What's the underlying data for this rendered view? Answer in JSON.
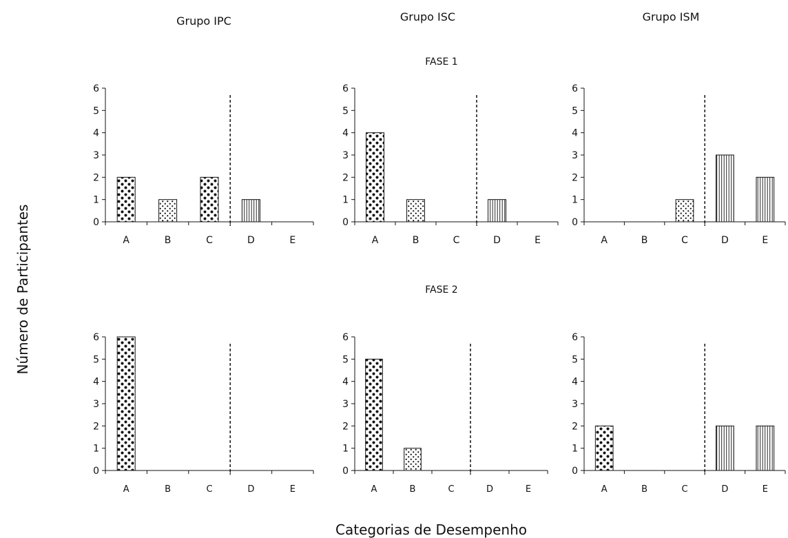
{
  "figure": {
    "group_titles": [
      "Grupo IPC",
      "Grupo ISC",
      "Grupo ISM"
    ],
    "phase_titles": [
      "FASE 1",
      "FASE 2"
    ],
    "ylabel": "Número de Participantes",
    "xlabel": "Categorias de Desempenho"
  },
  "chart_data": [
    {
      "type": "bar",
      "group": "Grupo IPC",
      "phase": "FASE 1",
      "categories": [
        "A",
        "B",
        "C",
        "D",
        "E"
      ],
      "values": [
        2,
        1,
        2,
        1,
        0
      ],
      "yticks": [
        "0",
        "1",
        "2",
        "3",
        "4",
        "5",
        "6"
      ],
      "ylim": [
        0,
        6
      ]
    },
    {
      "type": "bar",
      "group": "Grupo ISC",
      "phase": "FASE 1",
      "categories": [
        "A",
        "B",
        "C",
        "D",
        "E"
      ],
      "values": [
        4,
        1,
        0,
        1,
        0
      ],
      "yticks": [
        "0",
        "1",
        "2",
        "3",
        "4",
        "5",
        "6"
      ],
      "ylim": [
        0,
        6
      ]
    },
    {
      "type": "bar",
      "group": "Grupo ISM",
      "phase": "FASE 1",
      "categories": [
        "A",
        "B",
        "C",
        "D",
        "E"
      ],
      "values": [
        0,
        0,
        1,
        3,
        2
      ],
      "yticks": [
        "0",
        "1",
        "2",
        "3",
        "4",
        "5",
        "6"
      ],
      "ylim": [
        0,
        6
      ]
    },
    {
      "type": "bar",
      "group": "Grupo IPC",
      "phase": "FASE 2",
      "categories": [
        "A",
        "B",
        "C",
        "D",
        "E"
      ],
      "values": [
        6,
        0,
        0,
        0,
        0
      ],
      "yticks": [
        "0",
        "1",
        "2",
        "3",
        "4",
        "5",
        "6"
      ],
      "ylim": [
        0,
        6
      ]
    },
    {
      "type": "bar",
      "group": "Grupo ISC",
      "phase": "FASE 2",
      "categories": [
        "A",
        "B",
        "C",
        "D",
        "E"
      ],
      "values": [
        5,
        1,
        0,
        0,
        0
      ],
      "yticks": [
        "0",
        "1",
        "2",
        "3",
        "4",
        "5",
        "6"
      ],
      "ylim": [
        0,
        6
      ]
    },
    {
      "type": "bar",
      "group": "Grupo ISM",
      "phase": "FASE 2",
      "categories": [
        "A",
        "B",
        "C",
        "D",
        "E"
      ],
      "values": [
        2,
        0,
        0,
        2,
        2
      ],
      "yticks": [
        "0",
        "1",
        "2",
        "3",
        "4",
        "5",
        "6"
      ],
      "ylim": [
        0,
        6
      ]
    }
  ]
}
